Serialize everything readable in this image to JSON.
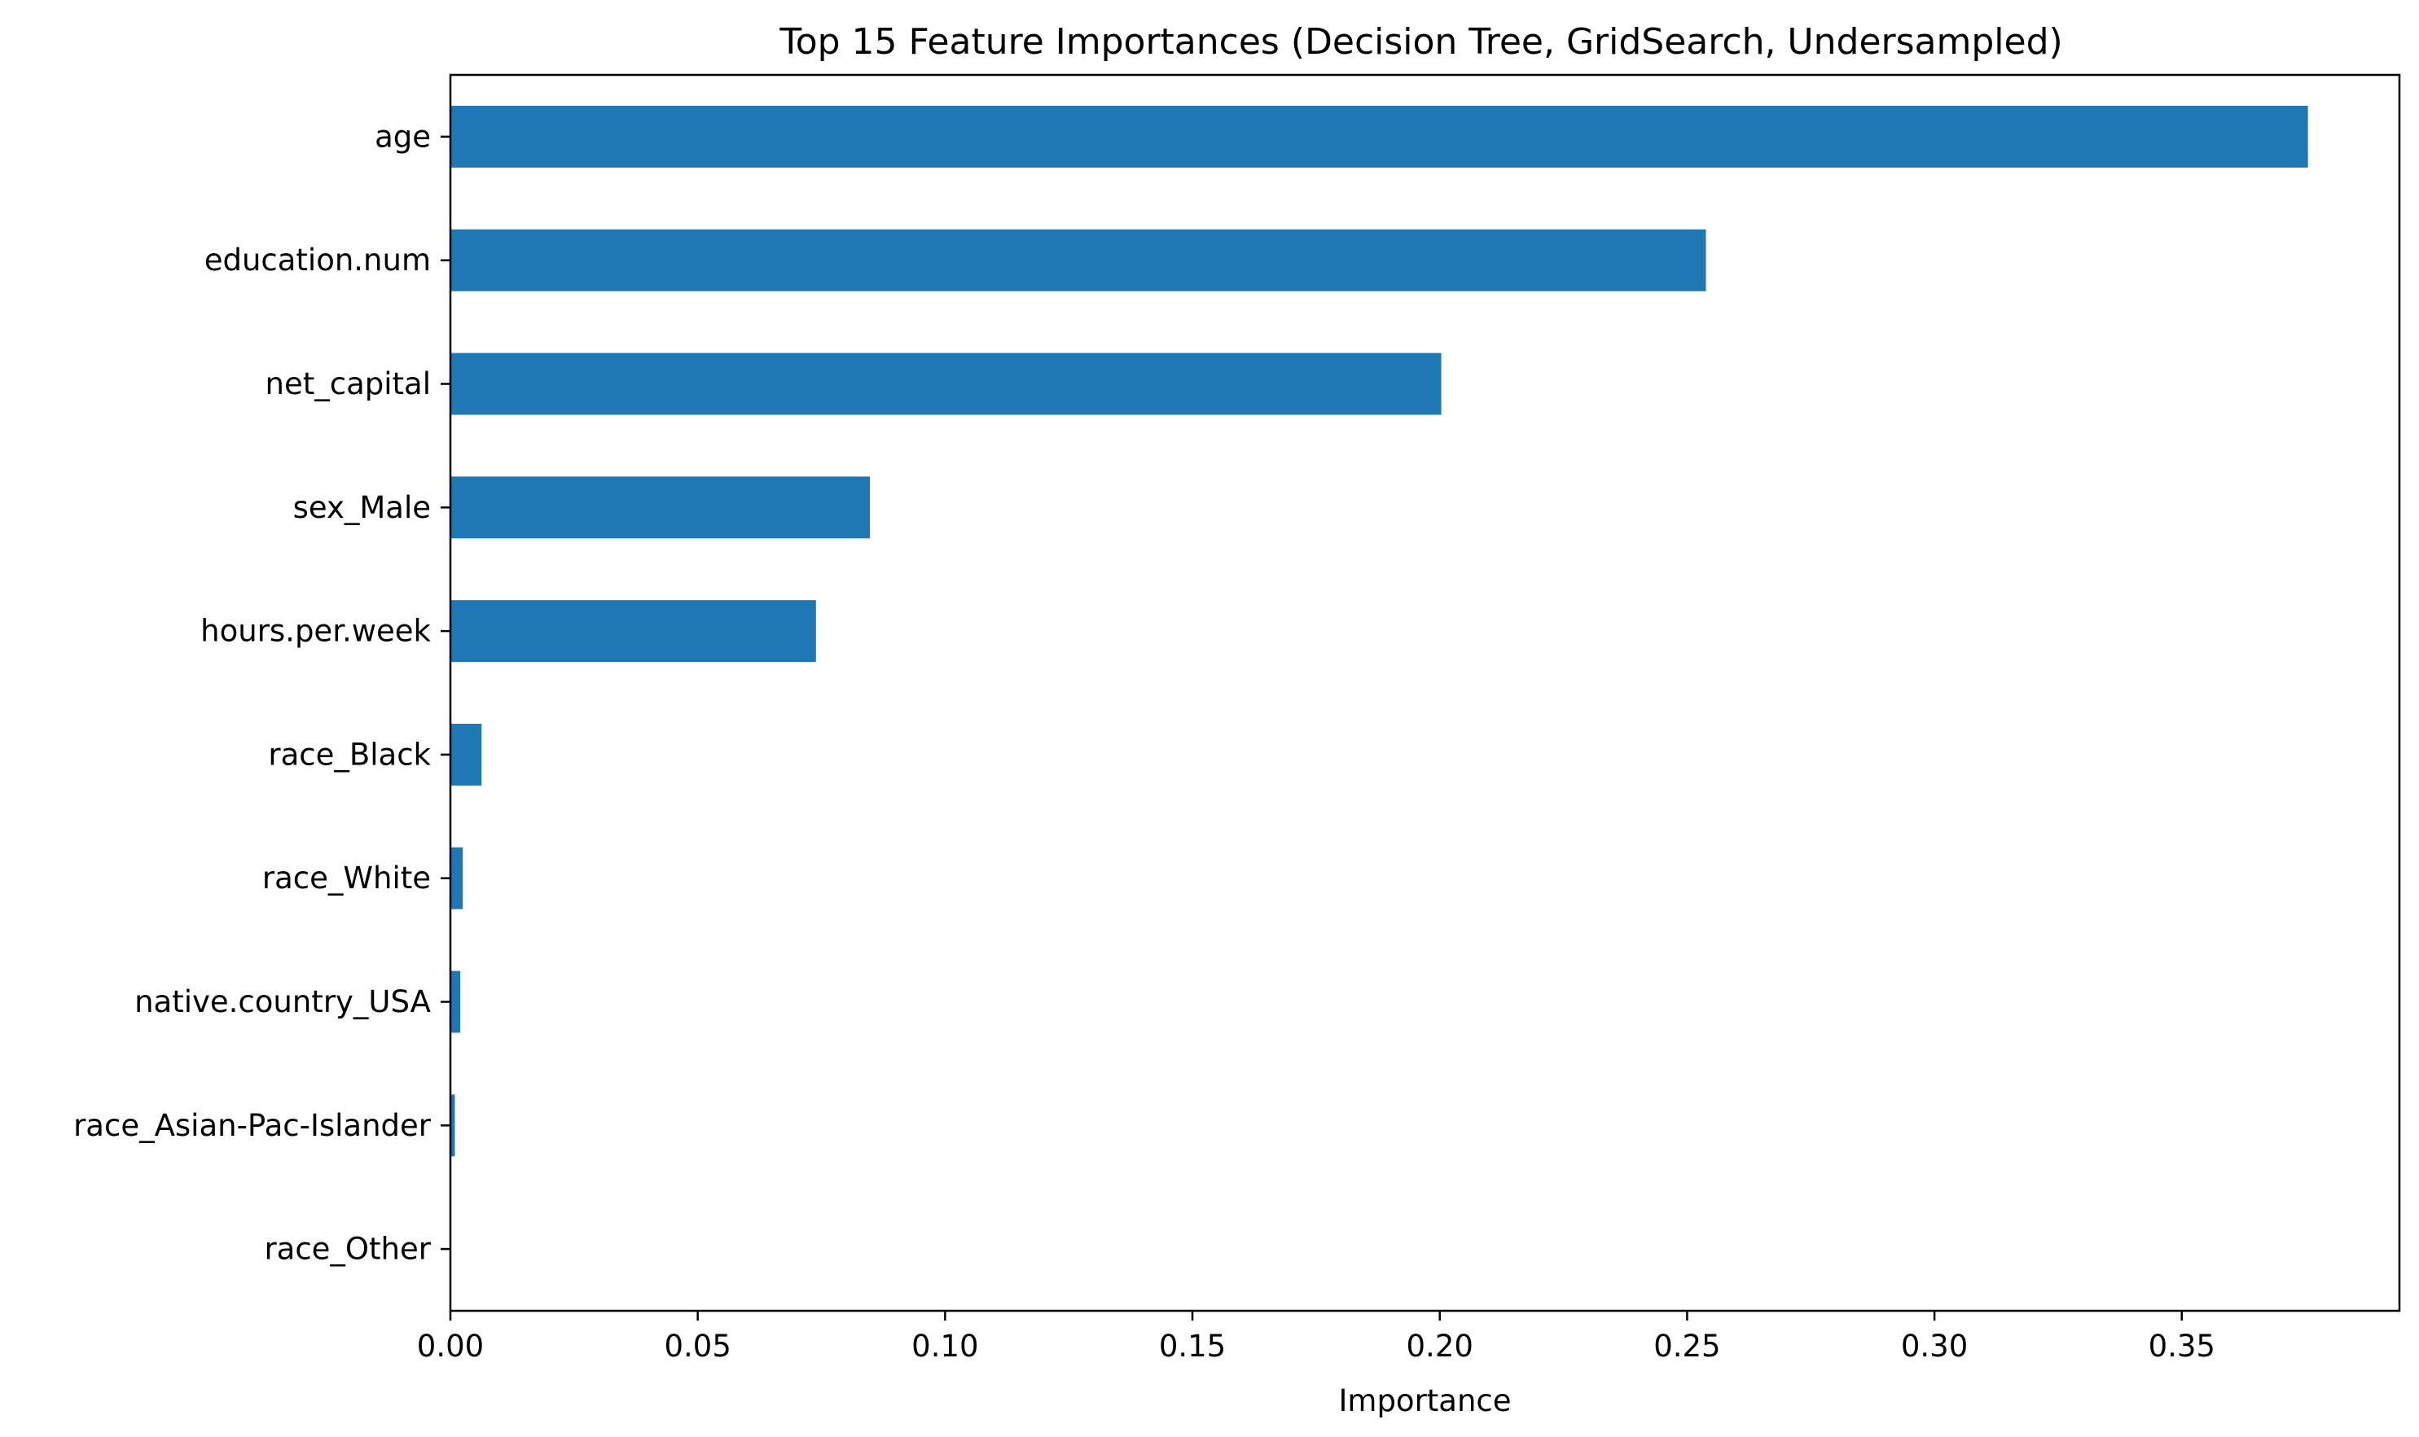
{
  "chart_data": {
    "type": "bar",
    "orientation": "horizontal",
    "title": "Top 15 Feature Importances (Decision Tree, GridSearch, Undersampled)",
    "xlabel": "Importance",
    "ylabel": "",
    "categories": [
      "age",
      "education.num",
      "net_capital",
      "sex_Male",
      "hours.per.week",
      "race_Black",
      "race_White",
      "native.country_USA",
      "race_Asian-Pac-Islander",
      "race_Other"
    ],
    "values": [
      0.3755,
      0.2538,
      0.2003,
      0.0848,
      0.0739,
      0.0063,
      0.0025,
      0.002,
      0.0009,
      0.0
    ],
    "xlim": [
      0.0,
      0.394
    ],
    "xticks": [
      0.0,
      0.05,
      0.1,
      0.15,
      0.2,
      0.25,
      0.3,
      0.35
    ],
    "xtick_labels": [
      "0.00",
      "0.05",
      "0.10",
      "0.15",
      "0.20",
      "0.25",
      "0.30",
      "0.35"
    ],
    "bar_color": "#1f77b4",
    "grid": false,
    "legend": "none"
  }
}
